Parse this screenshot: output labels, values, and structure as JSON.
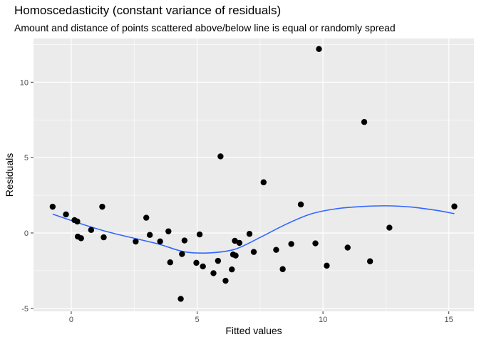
{
  "chart_data": {
    "type": "scatter",
    "title": "Homoscedasticity (constant variance of residuals)",
    "subtitle": "Amount and distance of points scattered above/below line is equal or randomly spread",
    "xlabel": "Fitted values",
    "ylabel": "Residuals",
    "xlim": [
      -1.5,
      16.0
    ],
    "ylim": [
      -5.2,
      12.9
    ],
    "x_ticks": [
      0,
      5,
      10,
      15
    ],
    "y_ticks": [
      -5,
      0,
      5,
      10
    ],
    "x_tick_labels": [
      "0",
      "5",
      "10",
      "15"
    ],
    "y_tick_labels": [
      "-5",
      "0",
      "5",
      "10"
    ],
    "grid": true,
    "legend": "none",
    "points": [
      {
        "x": -0.74,
        "y": 1.74
      },
      {
        "x": -0.21,
        "y": 1.23
      },
      {
        "x": 0.13,
        "y": 0.85
      },
      {
        "x": 0.24,
        "y": 0.76
      },
      {
        "x": 0.26,
        "y": -0.24
      },
      {
        "x": 0.39,
        "y": -0.35
      },
      {
        "x": 0.79,
        "y": 0.2
      },
      {
        "x": 1.23,
        "y": 1.74
      },
      {
        "x": 1.29,
        "y": -0.29
      },
      {
        "x": 2.56,
        "y": -0.57
      },
      {
        "x": 2.98,
        "y": 1.01
      },
      {
        "x": 3.12,
        "y": -0.13
      },
      {
        "x": 3.53,
        "y": -0.56
      },
      {
        "x": 3.86,
        "y": 0.11
      },
      {
        "x": 3.93,
        "y": -1.95
      },
      {
        "x": 4.35,
        "y": -4.37
      },
      {
        "x": 4.4,
        "y": -1.4
      },
      {
        "x": 4.5,
        "y": -0.5
      },
      {
        "x": 4.97,
        "y": -1.98
      },
      {
        "x": 5.1,
        "y": -0.1
      },
      {
        "x": 5.23,
        "y": -2.22
      },
      {
        "x": 5.65,
        "y": -2.67
      },
      {
        "x": 5.83,
        "y": -1.85
      },
      {
        "x": 5.93,
        "y": 5.08
      },
      {
        "x": 6.13,
        "y": -3.17
      },
      {
        "x": 6.38,
        "y": -2.42
      },
      {
        "x": 6.43,
        "y": -1.43
      },
      {
        "x": 6.5,
        "y": -0.52
      },
      {
        "x": 6.53,
        "y": -1.5
      },
      {
        "x": 6.68,
        "y": -0.66
      },
      {
        "x": 7.08,
        "y": -0.06
      },
      {
        "x": 7.25,
        "y": -1.26
      },
      {
        "x": 7.64,
        "y": 3.36
      },
      {
        "x": 8.14,
        "y": -1.12
      },
      {
        "x": 8.4,
        "y": -2.4
      },
      {
        "x": 8.74,
        "y": -0.73
      },
      {
        "x": 9.12,
        "y": 1.89
      },
      {
        "x": 9.7,
        "y": -0.69
      },
      {
        "x": 9.84,
        "y": 12.2
      },
      {
        "x": 10.15,
        "y": -2.17
      },
      {
        "x": 10.98,
        "y": -0.97
      },
      {
        "x": 11.64,
        "y": 7.36
      },
      {
        "x": 11.87,
        "y": -1.88
      },
      {
        "x": 12.64,
        "y": 0.35
      },
      {
        "x": 15.22,
        "y": 1.76
      }
    ],
    "smooth_line": {
      "x": [
        -0.74,
        0.5,
        1.5,
        2.5,
        3.5,
        4.5,
        5.5,
        6.5,
        7.5,
        8.5,
        9.5,
        10.5,
        11.5,
        12.5,
        13.5,
        14.5,
        15.22
      ],
      "y": [
        1.25,
        0.55,
        0.05,
        -0.35,
        -0.75,
        -1.25,
        -1.32,
        -1.08,
        -0.3,
        0.55,
        1.25,
        1.6,
        1.75,
        1.8,
        1.72,
        1.5,
        1.28
      ]
    },
    "colors": {
      "panel_background": "#ebebeb",
      "grid_major": "#ffffff",
      "points": "#000000",
      "smooth_line": "#3366ff"
    }
  }
}
